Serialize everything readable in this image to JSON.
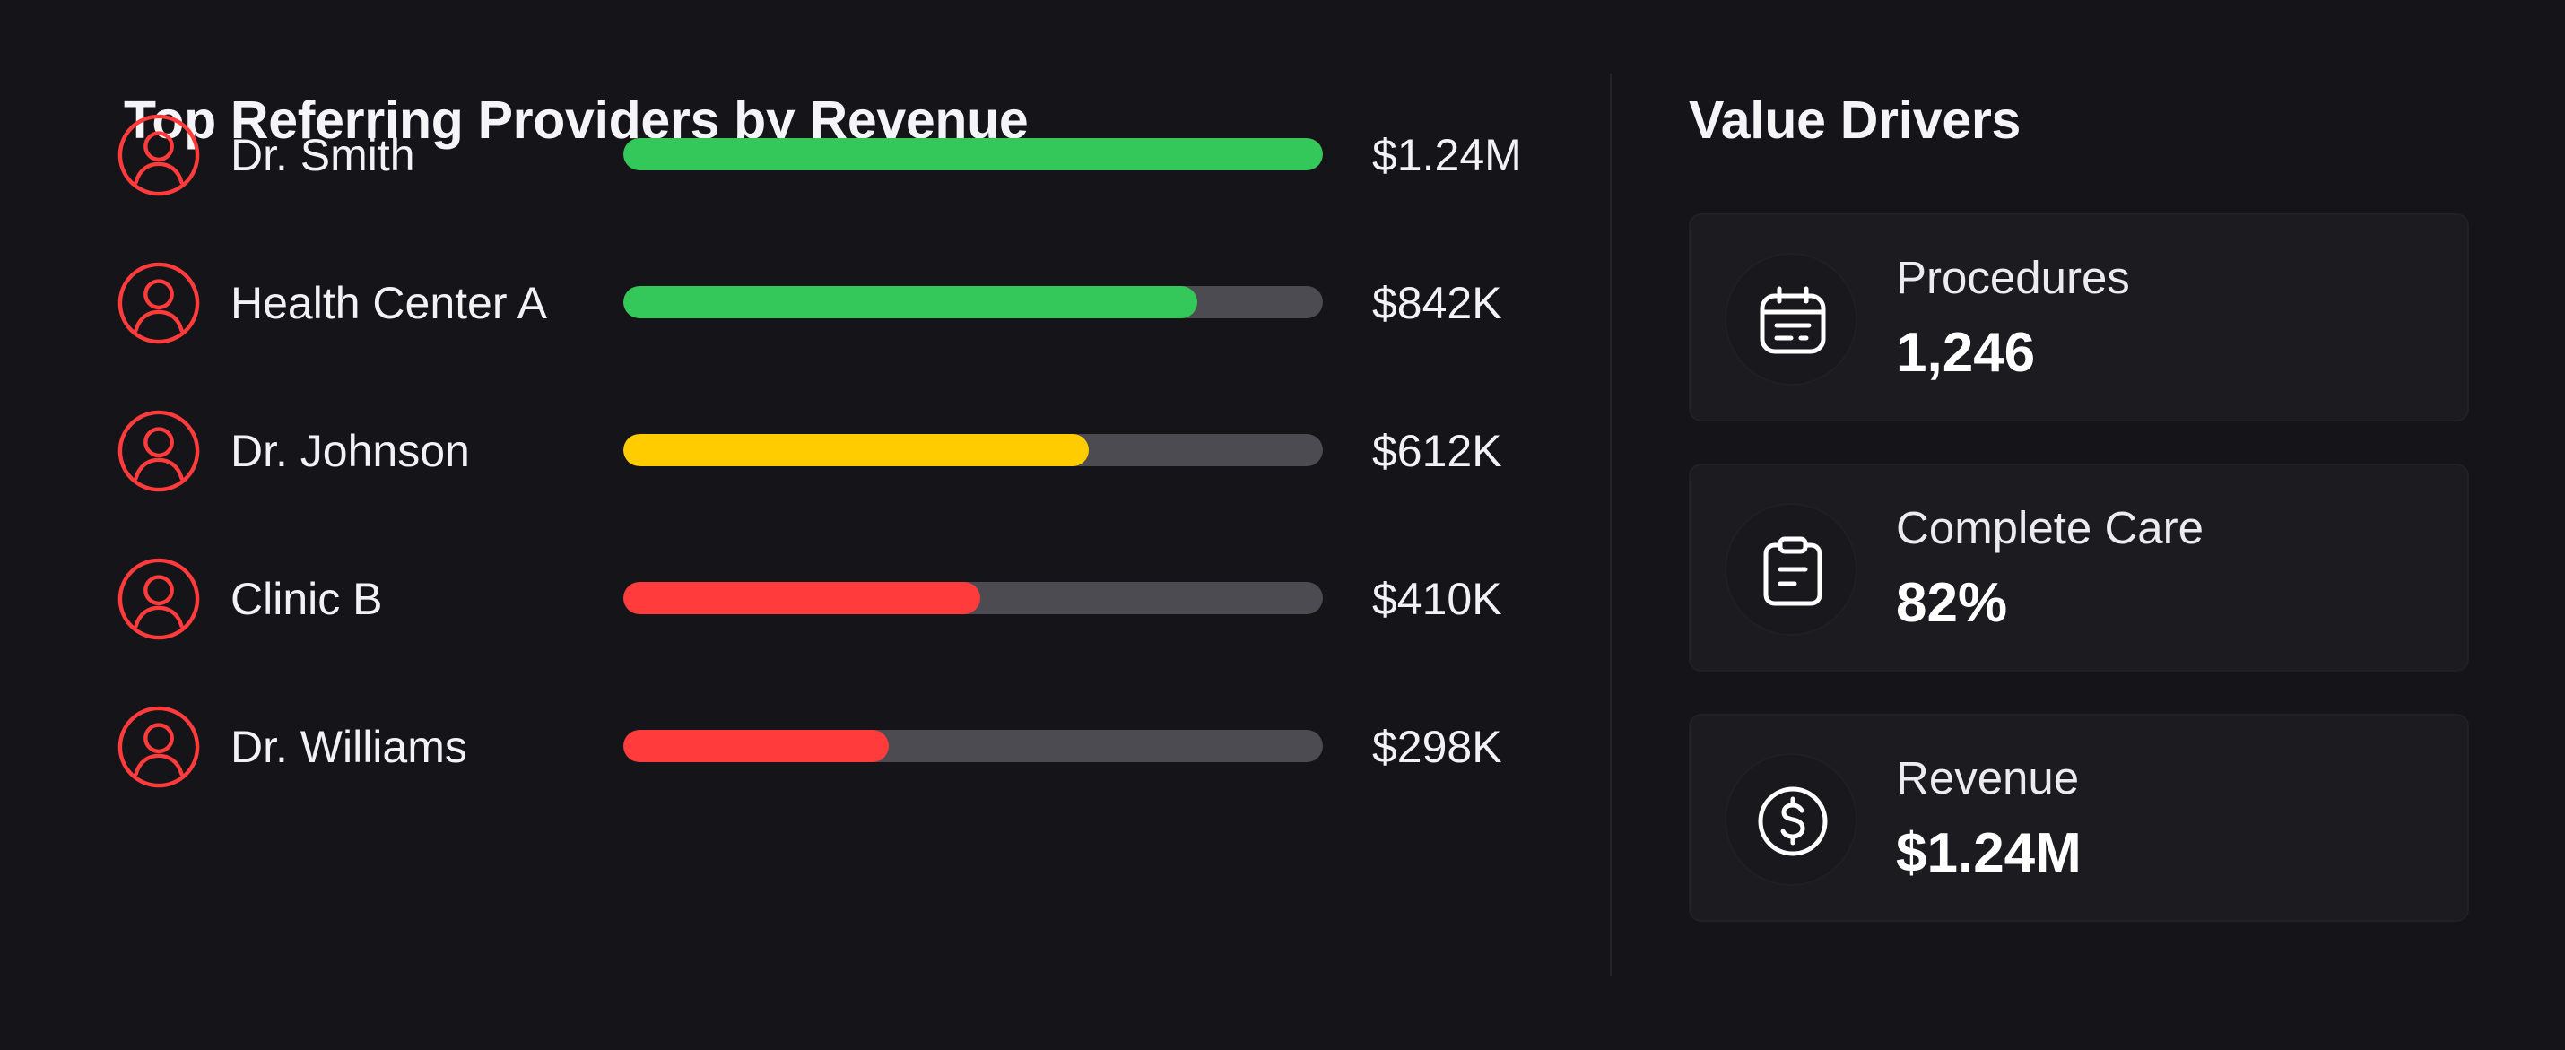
{
  "providers_panel": {
    "title": "Top Referring Providers by Revenue",
    "providers": [
      {
        "name": "Dr. Smith",
        "value": "$1.24M",
        "bar_fraction": 1.0,
        "bar_color": "#34c759"
      },
      {
        "name": "Health Center A",
        "value": "$842K",
        "bar_fraction": 0.82,
        "bar_color": "#34c759"
      },
      {
        "name": "Dr. Johnson",
        "value": "$612K",
        "bar_fraction": 0.665,
        "bar_color": "#ffcc00"
      },
      {
        "name": "Clinic B",
        "value": "$410K",
        "bar_fraction": 0.51,
        "bar_color": "#ff3b3b"
      },
      {
        "name": "Dr. Williams",
        "value": "$298K",
        "bar_fraction": 0.38,
        "bar_color": "#ff3b3b"
      }
    ],
    "avatar_icon": "user-circle-icon",
    "avatar_color": "#ff3b3b"
  },
  "drivers_panel": {
    "title": "Value Drivers",
    "drivers": [
      {
        "label": "Procedures",
        "value": "1,246",
        "icon": "calendar-icon"
      },
      {
        "label": "Complete Care",
        "value": "82%",
        "icon": "clipboard-icon"
      },
      {
        "label": "Revenue",
        "value": "$1.24M",
        "icon": "dollar-circle-icon"
      }
    ]
  },
  "colors": {
    "background": "#141419",
    "track": "#4b4b51",
    "card": "#1b1b20",
    "good": "#34c759",
    "warning": "#ffcc00",
    "bad": "#ff3b3b"
  }
}
